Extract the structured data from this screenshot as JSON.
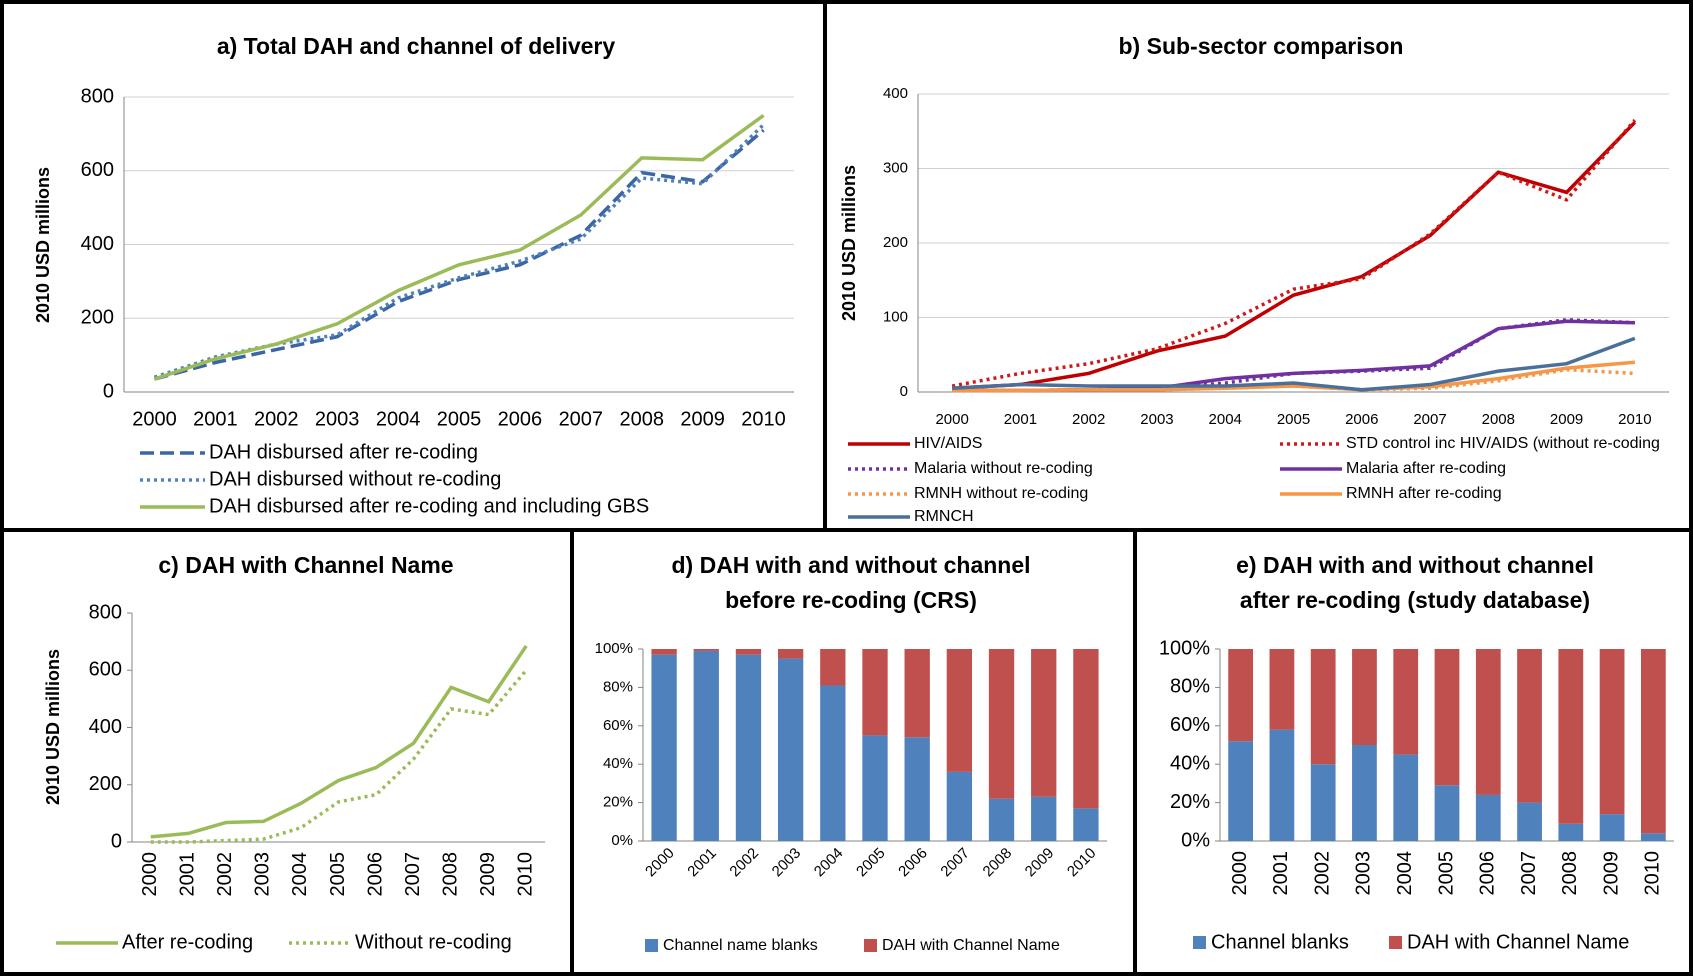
{
  "chart_data": [
    {
      "type": "line",
      "title": [
        "a) Total DAH and channel of delivery"
      ],
      "ylabel": "2010 USD millions",
      "categories": [
        "2000",
        "2001",
        "2002",
        "2003",
        "2004",
        "2005",
        "2006",
        "2007",
        "2008",
        "2009",
        "2010"
      ],
      "ylim": [
        0,
        800
      ],
      "yticks": [
        0,
        200,
        400,
        600,
        800
      ],
      "grid": true,
      "series": [
        {
          "name": "DAH disbursed after re-coding",
          "color": "#3b66a6",
          "dash": "dashed",
          "values": [
            35,
            80,
            115,
            150,
            245,
            305,
            345,
            425,
            595,
            570,
            710
          ]
        },
        {
          "name": "DAH disbursed without re-coding",
          "color": "#4f81bd",
          "dash": "dotted",
          "values": [
            40,
            95,
            130,
            155,
            255,
            310,
            355,
            415,
            580,
            565,
            725
          ]
        },
        {
          "name": "DAH disbursed after re-coding and including GBS",
          "color": "#9bbb59",
          "dash": "solid",
          "values": [
            35,
            90,
            130,
            185,
            275,
            345,
            385,
            480,
            635,
            630,
            750
          ]
        }
      ]
    },
    {
      "type": "line",
      "title": [
        "b) Sub-sector comparison"
      ],
      "ylabel": "2010 USD millions",
      "categories": [
        "2000",
        "2001",
        "2002",
        "2003",
        "2004",
        "2005",
        "2006",
        "2007",
        "2008",
        "2009",
        "2010"
      ],
      "ylim": [
        0,
        400
      ],
      "yticks": [
        0,
        100,
        200,
        300,
        400
      ],
      "grid": true,
      "series": [
        {
          "name": "HIV/AIDS",
          "color": "#c00000",
          "dash": "solid",
          "values": [
            5,
            10,
            25,
            55,
            75,
            130,
            155,
            210,
            295,
            268,
            362
          ]
        },
        {
          "name": "STD control inc HIV/AIDS (without re-coding",
          "color": "#d01818",
          "dash": "dotted",
          "values": [
            8,
            25,
            38,
            58,
            92,
            138,
            152,
            212,
            295,
            258,
            365
          ]
        },
        {
          "name": "Malaria without re-coding",
          "color": "#7030a0",
          "dash": "dotted",
          "values": [
            2,
            2,
            3,
            5,
            12,
            25,
            28,
            32,
            85,
            97,
            93
          ]
        },
        {
          "name": "Malaria after re-coding",
          "color": "#7030a0",
          "dash": "solid",
          "values": [
            2,
            2,
            3,
            5,
            18,
            25,
            29,
            35,
            85,
            95,
            93
          ]
        },
        {
          "name": "RMNH without re-coding",
          "color": "#f79646",
          "dash": "dotted",
          "values": [
            2,
            2,
            3,
            3,
            5,
            8,
            3,
            5,
            15,
            30,
            25
          ]
        },
        {
          "name": "RMNH after re-coding",
          "color": "#f79646",
          "dash": "solid",
          "values": [
            2,
            2,
            3,
            3,
            5,
            8,
            3,
            7,
            18,
            32,
            40
          ]
        },
        {
          "name": "RMNCH",
          "color": "#4a6f9a",
          "dash": "solid",
          "values": [
            5,
            10,
            8,
            8,
            8,
            12,
            3,
            10,
            28,
            38,
            72
          ]
        }
      ]
    },
    {
      "type": "line",
      "title": [
        "c) DAH with Channel Name"
      ],
      "ylabel": "2010 USD millions",
      "categories": [
        "2000",
        "2001",
        "2002",
        "2003",
        "2004",
        "2005",
        "2006",
        "2007",
        "2008",
        "2009",
        "2010"
      ],
      "ylim": [
        0,
        800
      ],
      "yticks": [
        0,
        200,
        400,
        600,
        800
      ],
      "grid": false,
      "series": [
        {
          "name": "After re-coding",
          "color": "#9bbb59",
          "dash": "solid",
          "values": [
            18,
            30,
            68,
            72,
            135,
            215,
            260,
            345,
            540,
            490,
            685
          ]
        },
        {
          "name": "Without re-coding",
          "color": "#9bbb59",
          "dash": "dotted",
          "values": [
            0,
            0,
            5,
            10,
            50,
            140,
            165,
            290,
            465,
            445,
            600
          ]
        }
      ]
    },
    {
      "type": "stacked_bar",
      "title": [
        "d) DAH with and without channel",
        "before re-coding (CRS)"
      ],
      "categories": [
        "2000",
        "2001",
        "2002",
        "2003",
        "2004",
        "2005",
        "2006",
        "2007",
        "2008",
        "2009",
        "2010"
      ],
      "ylim": [
        0,
        100
      ],
      "yticks": [
        {
          "value": 0,
          "label": "0%"
        },
        {
          "value": 20,
          "label": "20%"
        },
        {
          "value": 40,
          "label": "40%"
        },
        {
          "value": 60,
          "label": "60%"
        },
        {
          "value": 80,
          "label": "80%"
        },
        {
          "value": 100,
          "label": "100%"
        }
      ],
      "grid": false,
      "series": [
        {
          "name": "Channel name blanks",
          "color": "#4f81bd",
          "values": [
            97,
            99,
            97,
            95,
            81,
            55,
            54,
            36,
            22,
            23,
            17
          ]
        },
        {
          "name": "DAH with Channel Name",
          "color": "#c0504d",
          "values": [
            3,
            1,
            3,
            5,
            19,
            45,
            46,
            64,
            78,
            77,
            83
          ]
        }
      ]
    },
    {
      "type": "stacked_bar",
      "title": [
        "e) DAH with and without channel",
        "after re-coding (study database)"
      ],
      "categories": [
        "2000",
        "2001",
        "2002",
        "2003",
        "2004",
        "2005",
        "2006",
        "2007",
        "2008",
        "2009",
        "2010"
      ],
      "ylim": [
        0,
        100
      ],
      "yticks": [
        {
          "value": 0,
          "label": "0%"
        },
        {
          "value": 20,
          "label": "20%"
        },
        {
          "value": 40,
          "label": "40%"
        },
        {
          "value": 60,
          "label": "60%"
        },
        {
          "value": 80,
          "label": "80%"
        },
        {
          "value": 100,
          "label": "100%"
        }
      ],
      "grid": false,
      "series": [
        {
          "name": "Channel blanks",
          "color": "#4f81bd",
          "values": [
            52,
            58,
            40,
            50,
            45,
            29,
            24,
            20,
            9,
            14,
            4
          ]
        },
        {
          "name": "DAH with Channel Name",
          "color": "#c0504d",
          "values": [
            48,
            42,
            60,
            50,
            55,
            71,
            76,
            80,
            91,
            86,
            96
          ]
        }
      ]
    }
  ]
}
